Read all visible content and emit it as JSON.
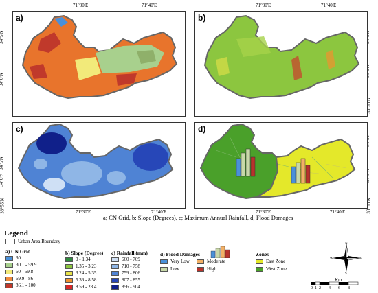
{
  "ticks": {
    "top_left": "71°30'E",
    "top_right": "71°40'E",
    "lat_top": "34°5'N",
    "lat_mid": "34°0'N",
    "lat_bot": "33°55'N"
  },
  "panels": {
    "a": {
      "label": "a)"
    },
    "b": {
      "label": "b)"
    },
    "c": {
      "label": "c)"
    },
    "d": {
      "label": "d)"
    }
  },
  "caption": "a; CN Grid, b; Slope (Degrees), c; Maximum Annual Rainfall, d; Flood Damages",
  "legend": {
    "title": "Legend",
    "boundary": "Urban Area Boundary",
    "cn": {
      "title": "a) CN Grid",
      "items": [
        {
          "label": "30",
          "color": "#4a90d9"
        },
        {
          "label": "30.1 - 59.9",
          "color": "#a8d08d"
        },
        {
          "label": "60 - 69.8",
          "color": "#f2ea7a"
        },
        {
          "label": "69.9 - 86",
          "color": "#f08a3c"
        },
        {
          "label": "86.1 - 100",
          "color": "#c0392b"
        }
      ]
    },
    "slope": {
      "title": "b) Slope (Degree)",
      "items": [
        {
          "label": "0 - 1.34",
          "color": "#2e8b3d"
        },
        {
          "label": "1.35 - 3.23",
          "color": "#8cc63f"
        },
        {
          "label": "3.24 - 5.35",
          "color": "#e8e34a"
        },
        {
          "label": "5.36 - 8.58",
          "color": "#f0912f"
        },
        {
          "label": "8.59 - 28.4",
          "color": "#d62728"
        }
      ]
    },
    "rain": {
      "title": "c) Rainfall (mm)",
      "items": [
        {
          "label": "660 - 709",
          "color": "#cfe0f5"
        },
        {
          "label": "710 - 758",
          "color": "#8fb6e6"
        },
        {
          "label": "759 - 806",
          "color": "#4f83d4"
        },
        {
          "label": "807 - 855",
          "color": "#2747b8"
        },
        {
          "label": "856 - 904",
          "color": "#10208a"
        }
      ]
    },
    "damage": {
      "title": "d) Flood Damages",
      "items": [
        {
          "label": "Very Low",
          "color": "#4a90d9"
        },
        {
          "label": "Low",
          "color": "#c8d8a8"
        },
        {
          "label": "Moderate",
          "color": "#f2b066"
        },
        {
          "label": "High",
          "color": "#b8322b"
        }
      ]
    },
    "zones": {
      "title": "Zones",
      "items": [
        {
          "label": "East Zone",
          "color": "#e4e82a"
        },
        {
          "label": "West Zone",
          "color": "#4aa02a"
        }
      ]
    },
    "scale": {
      "unit": "Km",
      "ticks": [
        "0",
        "1",
        "2",
        "4",
        "6",
        "8"
      ]
    },
    "compass": {
      "n": "N",
      "s": "S",
      "e": "E",
      "w": "W"
    }
  }
}
